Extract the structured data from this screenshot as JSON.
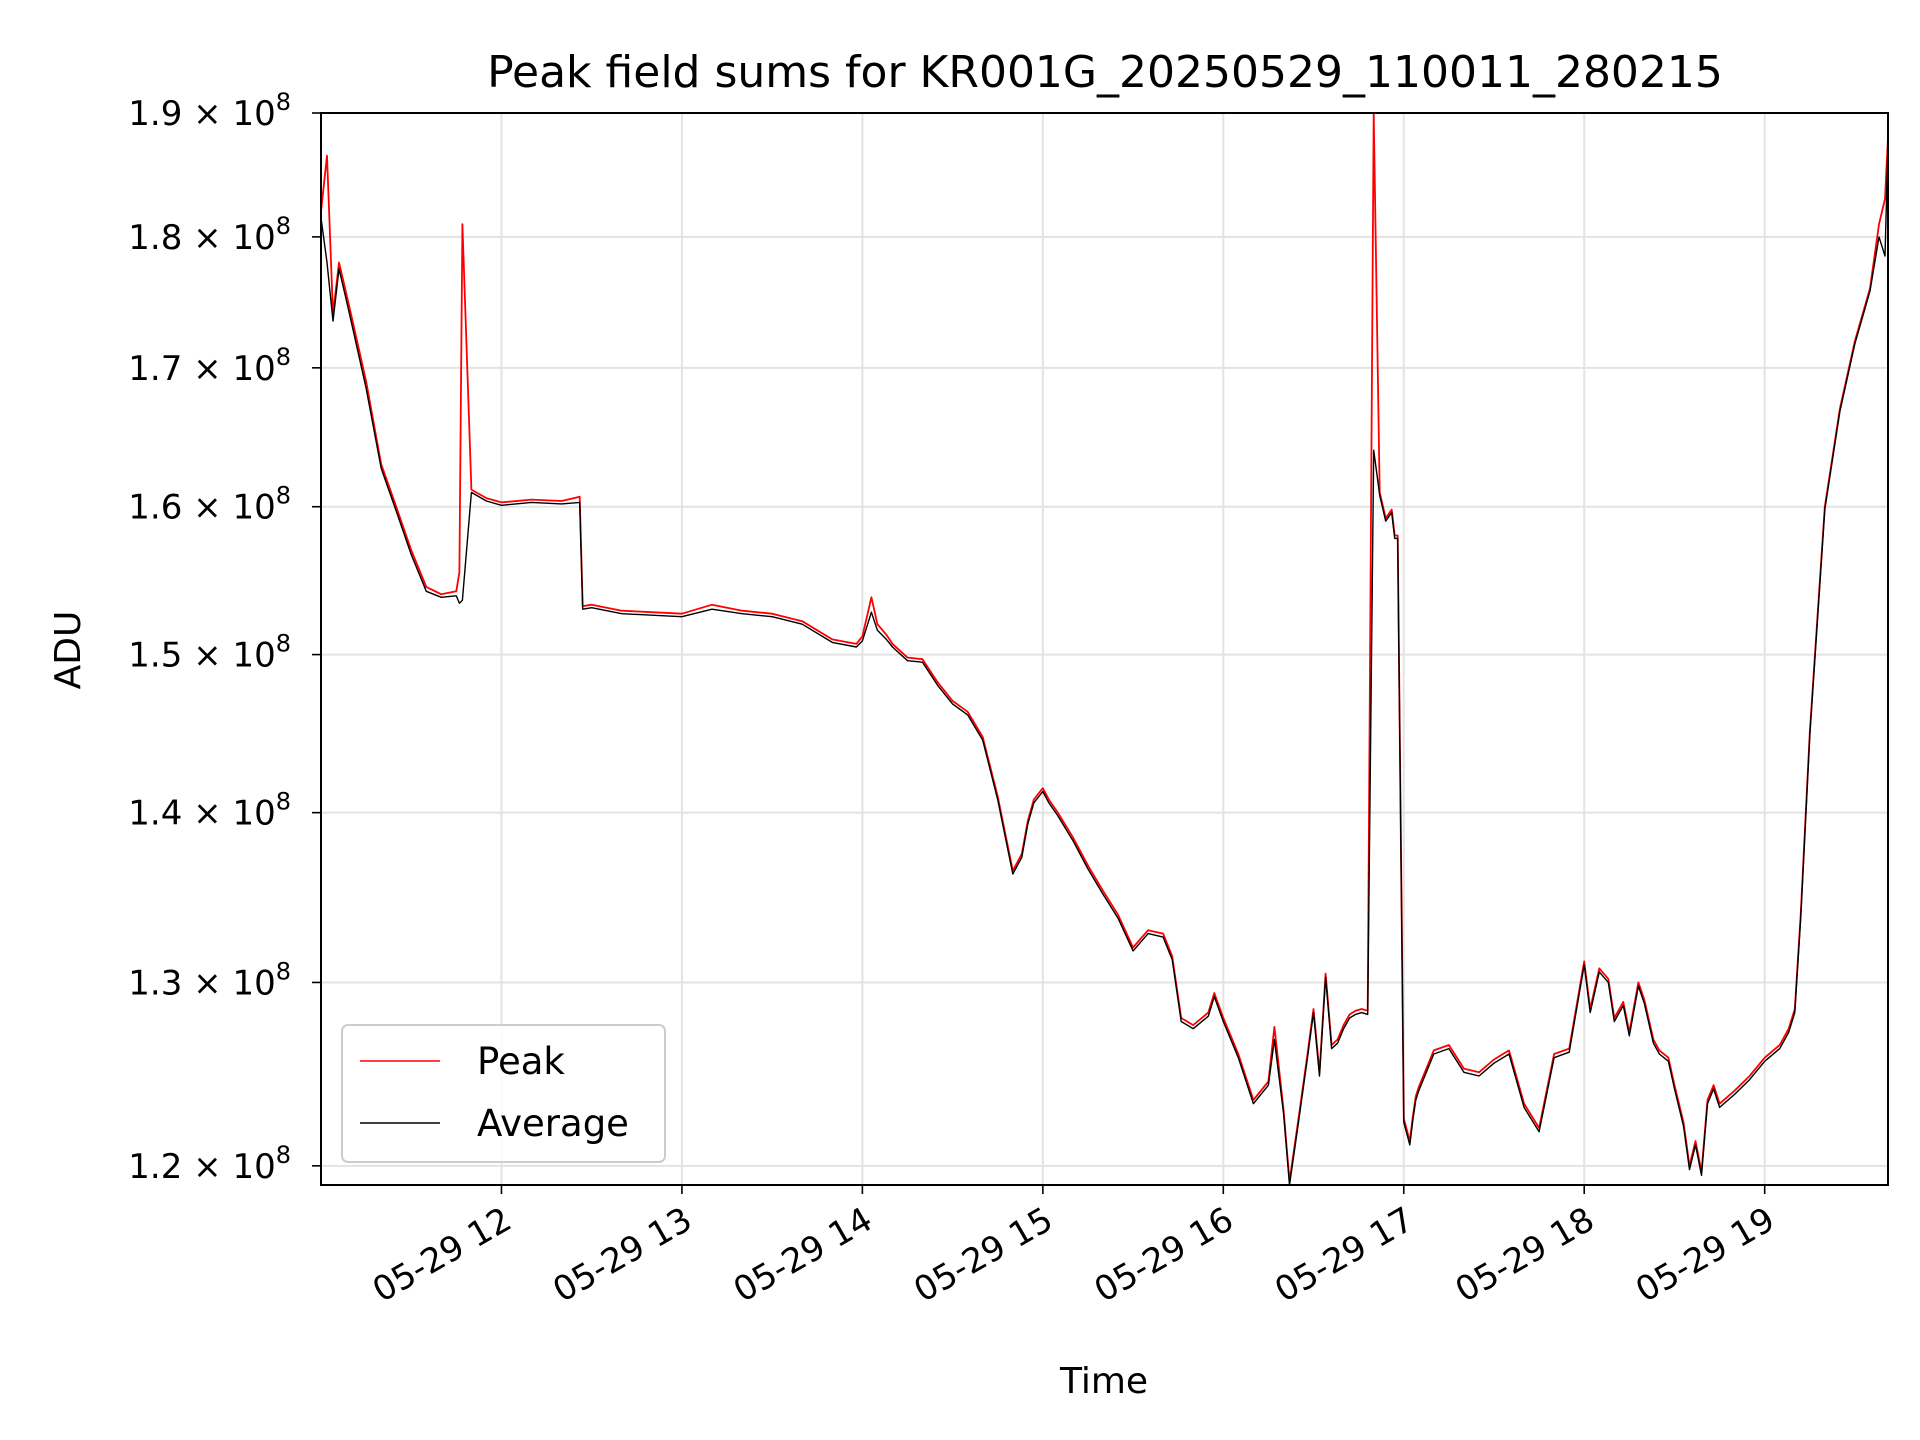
{
  "chart_data": {
    "type": "line",
    "title": "Peak field sums for KR001G_20250529_110011_280215",
    "xlabel": "Time",
    "ylabel": "ADU",
    "y_scale": "log",
    "ylim": [
      119000000,
      190000000
    ],
    "xlim": [
      "2025-05-29 11:00",
      "2025-05-29 19:41"
    ],
    "grid": true,
    "legend_position": "lower-left",
    "x_ticks": [
      "05-29 12",
      "05-29 13",
      "05-29 14",
      "05-29 15",
      "05-29 16",
      "05-29 17",
      "05-29 18",
      "05-29 19"
    ],
    "y_ticks": [
      {
        "mantissa": "1.2",
        "exponent": "8",
        "value": 120000000
      },
      {
        "mantissa": "1.3",
        "exponent": "8",
        "value": 130000000
      },
      {
        "mantissa": "1.4",
        "exponent": "8",
        "value": 140000000
      },
      {
        "mantissa": "1.5",
        "exponent": "8",
        "value": 150000000
      },
      {
        "mantissa": "1.6",
        "exponent": "8",
        "value": 160000000
      },
      {
        "mantissa": "1.7",
        "exponent": "8",
        "value": 170000000
      },
      {
        "mantissa": "1.8",
        "exponent": "8",
        "value": 180000000
      },
      {
        "mantissa": "1.9",
        "exponent": "8",
        "value": 190000000
      }
    ],
    "times": [
      "11:00",
      "11:02",
      "11:04",
      "11:06",
      "11:08",
      "11:10",
      "11:15",
      "11:20",
      "11:25",
      "11:30",
      "11:35",
      "11:40",
      "11:45",
      "11:46",
      "11:47",
      "11:50",
      "11:55",
      "12:00",
      "12:10",
      "12:20",
      "12:26",
      "12:27",
      "12:30",
      "12:40",
      "12:50",
      "13:00",
      "13:10",
      "13:20",
      "13:30",
      "13:40",
      "13:50",
      "13:58",
      "14:00",
      "14:03",
      "14:05",
      "14:08",
      "14:10",
      "14:15",
      "14:20",
      "14:25",
      "14:30",
      "14:35",
      "14:40",
      "14:45",
      "14:50",
      "14:53",
      "14:55",
      "14:57",
      "15:00",
      "15:02",
      "15:05",
      "15:10",
      "15:15",
      "15:20",
      "15:25",
      "15:30",
      "15:35",
      "15:40",
      "15:43",
      "15:46",
      "15:50",
      "15:55",
      "15:57",
      "16:00",
      "16:05",
      "16:10",
      "16:15",
      "16:17",
      "16:20",
      "16:22",
      "16:25",
      "16:28",
      "16:30",
      "16:32",
      "16:34",
      "16:36",
      "16:38",
      "16:40",
      "16:42",
      "16:44",
      "16:46",
      "16:48",
      "16:50",
      "16:52",
      "16:54",
      "16:56",
      "16:57",
      "16:58",
      "17:00",
      "17:02",
      "17:03",
      "17:04",
      "17:05",
      "17:07",
      "17:10",
      "17:15",
      "17:20",
      "17:25",
      "17:30",
      "17:35",
      "17:40",
      "17:45",
      "17:50",
      "17:55",
      "18:00",
      "18:02",
      "18:05",
      "18:08",
      "18:10",
      "18:13",
      "18:15",
      "18:18",
      "18:20",
      "18:23",
      "18:25",
      "18:28",
      "18:30",
      "18:33",
      "18:35",
      "18:37",
      "18:39",
      "18:41",
      "18:43",
      "18:45",
      "18:50",
      "18:55",
      "19:00",
      "19:05",
      "19:08",
      "19:10",
      "19:12",
      "19:15",
      "19:20",
      "19:25",
      "19:30",
      "19:35",
      "19:38",
      "19:40",
      "19:41"
    ],
    "series": [
      {
        "name": "Peak",
        "color": "#ff0000",
        "values": [
          182000000,
          186500000,
          174000000,
          178000000,
          176000000,
          174000000,
          169000000,
          163000000,
          160000000,
          157000000,
          154500000,
          154000000,
          154200000,
          155500000,
          181000000,
          161200000,
          160600000,
          160300000,
          160500000,
          160400000,
          160700000,
          153200000,
          153300000,
          152900000,
          152800000,
          152700000,
          153300000,
          152900000,
          152700000,
          152200000,
          151000000,
          150700000,
          151200000,
          153800000,
          152000000,
          151300000,
          150700000,
          149800000,
          149700000,
          148200000,
          147000000,
          146300000,
          144700000,
          141000000,
          136500000,
          137500000,
          139500000,
          140800000,
          141500000,
          140800000,
          140000000,
          138500000,
          136800000,
          135300000,
          133900000,
          132000000,
          133000000,
          132800000,
          131500000,
          128000000,
          127600000,
          128300000,
          129400000,
          128000000,
          126000000,
          123500000,
          124500000,
          127500000,
          123000000,
          119200000,
          122500000,
          126000000,
          128500000,
          125000000,
          130500000,
          126500000,
          126800000,
          127600000,
          128200000,
          128400000,
          128500000,
          128400000,
          190000000,
          161000000,
          159200000,
          159800000,
          158000000,
          158000000,
          122500000,
          121300000,
          122600000,
          123700000,
          124200000,
          125000000,
          126200000,
          126500000,
          125200000,
          125000000,
          125700000,
          126200000,
          123300000,
          122000000,
          126000000,
          126300000,
          131200000,
          128500000,
          130800000,
          130200000,
          128000000,
          128900000,
          127200000,
          130000000,
          129000000,
          126800000,
          126200000,
          125800000,
          124300000,
          122300000,
          120000000,
          121300000,
          119700000,
          123500000,
          124300000,
          123300000,
          124000000,
          124800000,
          125800000,
          126500000,
          127400000,
          128500000,
          134000000,
          145000000,
          160000000,
          167000000,
          172000000,
          176000000,
          181000000,
          183000000,
          188000000
        ]
      },
      {
        "name": "Average",
        "color": "#000000",
        "values": [
          181500000,
          178000000,
          173500000,
          177500000,
          175500000,
          173500000,
          168500000,
          162700000,
          159700000,
          156700000,
          154200000,
          153800000,
          153900000,
          153400000,
          153600000,
          161000000,
          160400000,
          160100000,
          160300000,
          160200000,
          160300000,
          153000000,
          153100000,
          152700000,
          152600000,
          152500000,
          153000000,
          152700000,
          152500000,
          152000000,
          150800000,
          150500000,
          150900000,
          152800000,
          151600000,
          151000000,
          150500000,
          149600000,
          149500000,
          148000000,
          146800000,
          146100000,
          144500000,
          140800000,
          136300000,
          137300000,
          139300000,
          140600000,
          141300000,
          140600000,
          139800000,
          138300000,
          136600000,
          135100000,
          133700000,
          131800000,
          132800000,
          132600000,
          131300000,
          127800000,
          127400000,
          128100000,
          129200000,
          127800000,
          125800000,
          123300000,
          124300000,
          126800000,
          122800000,
          119000000,
          122300000,
          125800000,
          128300000,
          124800000,
          130300000,
          126300000,
          126600000,
          127400000,
          128000000,
          128200000,
          128300000,
          128200000,
          164000000,
          160800000,
          159000000,
          159600000,
          157800000,
          157800000,
          122300000,
          121100000,
          122400000,
          123500000,
          124000000,
          124800000,
          126000000,
          126300000,
          125000000,
          124800000,
          125500000,
          126000000,
          123100000,
          121800000,
          125800000,
          126100000,
          131000000,
          128300000,
          130600000,
          130000000,
          127800000,
          128700000,
          127000000,
          129800000,
          128800000,
          126600000,
          126000000,
          125600000,
          124100000,
          122100000,
          119800000,
          121100000,
          119500000,
          123300000,
          124100000,
          123100000,
          123800000,
          124600000,
          125600000,
          126300000,
          127200000,
          128300000,
          133800000,
          144800000,
          159800000,
          166800000,
          171800000,
          175800000,
          180000000,
          178500000,
          187500000
        ]
      }
    ]
  }
}
